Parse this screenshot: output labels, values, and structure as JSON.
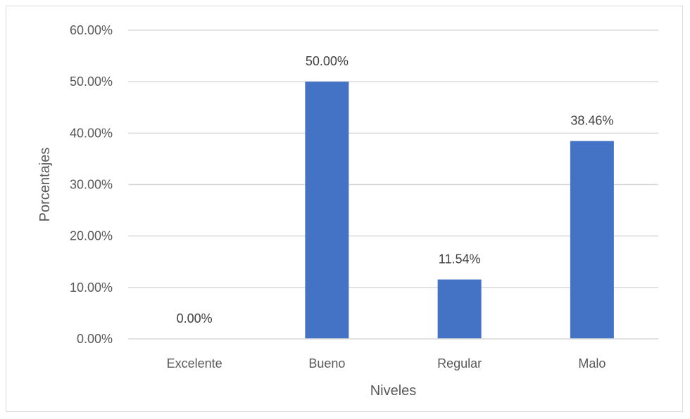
{
  "chart_data": {
    "type": "bar",
    "categories": [
      "Excelente",
      "Bueno",
      "Regular",
      "Malo"
    ],
    "values": [
      0.0,
      50.0,
      11.54,
      38.46
    ],
    "value_labels": [
      "0.00%",
      "50.00%",
      "11.54%",
      "38.46%"
    ],
    "title": "",
    "xlabel": "Niveles",
    "ylabel": "Porcentajes",
    "ylim": [
      0,
      60
    ],
    "yticks": [
      0,
      10,
      20,
      30,
      40,
      50,
      60
    ],
    "ytick_labels": [
      "0.00%",
      "10.00%",
      "20.00%",
      "30.00%",
      "40.00%",
      "50.00%",
      "60.00%"
    ],
    "grid": true,
    "legend": "none",
    "bar_color": "#4472C4",
    "grid_color": "#d9d9d9"
  }
}
